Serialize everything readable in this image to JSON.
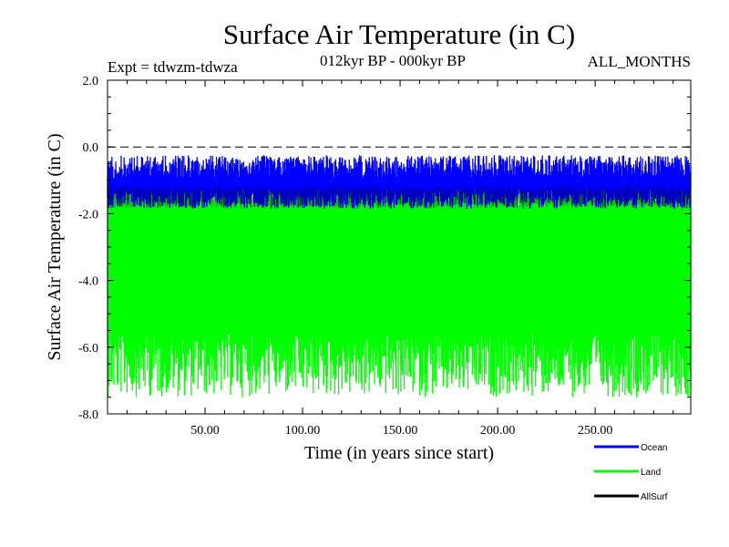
{
  "chart_data": {
    "type": "line",
    "title": "Surface Air Temperature (in C)",
    "subtitle_left": "Expt = tdwzm-tdwza",
    "subtitle_center": "012kyr BP - 000kyr BP",
    "subtitle_right": "ALL_MONTHS",
    "xlabel": "Time (in years since start)",
    "ylabel": "Surface Air Temperature (in C)",
    "xlim": [
      0,
      299
    ],
    "ylim": [
      -8.0,
      2.0
    ],
    "x_ticks": [
      50,
      100,
      150,
      200,
      250
    ],
    "x_tick_labels": [
      "50.00",
      "100.00",
      "150.00",
      "200.00",
      "250.00"
    ],
    "y_ticks": [
      2.0,
      0.0,
      -2.0,
      -4.0,
      -6.0,
      -8.0
    ],
    "y_tick_labels": [
      "2.0",
      "0.0",
      "-2.0",
      "-4.0",
      "-6.0",
      "-8.0"
    ],
    "reference_line": {
      "y": 0.0,
      "style": "dashed"
    },
    "legend_position": "bottom-right",
    "series": [
      {
        "name": "Ocean",
        "color": "#0000ff",
        "style": "high-frequency band",
        "approx_range": [
          -1.9,
          -0.2
        ],
        "mean": -1.0
      },
      {
        "name": "Land",
        "color": "#00ff00",
        "style": "high-frequency band",
        "approx_range": [
          -7.5,
          0.05
        ],
        "mean": -3.9
      },
      {
        "name": "AllSurf",
        "color": "#000000",
        "style": "high-frequency band",
        "approx_range": [
          -2.1,
          -0.9
        ],
        "mean": -1.5
      }
    ]
  }
}
